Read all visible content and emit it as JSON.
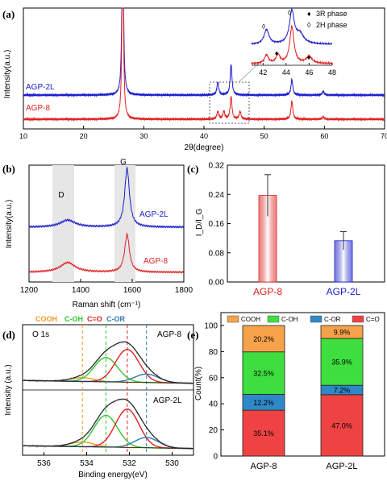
{
  "chart_data": [
    {
      "panel": "(a)",
      "type": "line",
      "xlabel": "2θ(degree)",
      "ylabel": "Intensity(a.u.)",
      "xlim": [
        10,
        70
      ],
      "x_ticks": [
        "10",
        "20",
        "30",
        "40",
        "50",
        "60",
        "70"
      ],
      "series": [
        {
          "name": "AGP-2L",
          "color": "#1a1acc",
          "peaks": [
            {
              "x": 26.5,
              "rel": 1.0
            },
            {
              "x": 42.3,
              "rel": 0.05
            },
            {
              "x": 44.5,
              "rel": 0.12
            },
            {
              "x": 54.6,
              "rel": 0.06
            },
            {
              "x": 59.8,
              "rel": 0.015
            }
          ]
        },
        {
          "name": "AGP-8",
          "color": "#e02020",
          "peaks": [
            {
              "x": 26.5,
              "rel": 1.0
            },
            {
              "x": 42.3,
              "rel": 0.03
            },
            {
              "x": 43.3,
              "rel": 0.03
            },
            {
              "x": 44.5,
              "rel": 0.09
            },
            {
              "x": 46.0,
              "rel": 0.03
            },
            {
              "x": 54.6,
              "rel": 0.07
            },
            {
              "x": 59.8,
              "rel": 0.01
            }
          ]
        }
      ],
      "inset": {
        "x_ticks": [
          "42",
          "44",
          "46",
          "48"
        ],
        "xlim": [
          41,
          48
        ],
        "legend": [
          {
            "symbol": "♦",
            "label": "3R phase"
          },
          {
            "symbol": "◊",
            "label": "2H phase"
          }
        ]
      }
    },
    {
      "panel": "(b)",
      "type": "line",
      "xlabel": "Raman shift (cm⁻¹)",
      "ylabel": "Intensity(a.u.)",
      "xlim": [
        1200,
        1800
      ],
      "x_ticks": [
        "1200",
        "1400",
        "1600",
        "1800"
      ],
      "band_labels": [
        "D",
        "G"
      ],
      "series": [
        {
          "name": "AGP-2L",
          "color": "#1a1acc",
          "D": {
            "x": 1350,
            "rel": 0.12
          },
          "G": {
            "x": 1580,
            "rel": 1.0
          }
        },
        {
          "name": "AGP-8",
          "color": "#e02020",
          "D": {
            "x": 1350,
            "rel": 0.18
          },
          "G": {
            "x": 1580,
            "rel": 0.7
          }
        }
      ]
    },
    {
      "panel": "(c)",
      "type": "bar",
      "ylabel": "I_D/I_G",
      "ylim": [
        0,
        0.32
      ],
      "y_ticks": [
        "0.00",
        "0.08",
        "0.16",
        "0.24",
        "0.32"
      ],
      "categories": [
        "AGP-8",
        "AGP-2L"
      ],
      "values": [
        0.237,
        0.113
      ],
      "errors": [
        0.057,
        0.025
      ],
      "colors": [
        "#e02020",
        "#1a1acc"
      ]
    },
    {
      "panel": "(d)",
      "type": "line",
      "title": "O 1s",
      "xlabel": "Binding energy(eV)",
      "ylabel": "Intensity (a.u.)",
      "xlim": [
        537,
        529
      ],
      "x_ticks": [
        "536",
        "534",
        "532",
        "530"
      ],
      "components": [
        {
          "label": "COOH",
          "color": "#f39a1e",
          "center": 534.2
        },
        {
          "label": "C-OH",
          "color": "#2ec82e",
          "center": 533.1
        },
        {
          "label": "C=O",
          "color": "#e02020",
          "center": 532.1
        },
        {
          "label": "C-OR",
          "color": "#2a79b5",
          "center": 531.2
        }
      ],
      "series": [
        {
          "name": "AGP-8",
          "amps": [
            0.08,
            0.52,
            0.7,
            0.18
          ]
        },
        {
          "name": "AGP-2L",
          "amps": [
            0.1,
            0.68,
            0.82,
            0.22
          ]
        }
      ]
    },
    {
      "panel": "(e)",
      "type": "bar",
      "stacked": true,
      "ylabel": "Count(%)",
      "ylim": [
        0,
        100
      ],
      "y_ticks": [
        "0",
        "20",
        "40",
        "60",
        "80",
        "100"
      ],
      "categories": [
        "AGP-8",
        "AGP-2L"
      ],
      "series": [
        {
          "name": "C=O",
          "color": "#ef4242",
          "values": [
            35.1,
            47.0
          ],
          "labels": [
            "35.1%",
            "47.0%"
          ]
        },
        {
          "name": "C-OR",
          "color": "#2f88c7",
          "values": [
            12.2,
            7.2
          ],
          "labels": [
            "12.2%",
            "7.2%"
          ]
        },
        {
          "name": "C-OH",
          "color": "#3fde3f",
          "values": [
            32.5,
            35.9
          ],
          "labels": [
            "32.5%",
            "35.9%"
          ]
        },
        {
          "name": "COOH",
          "color": "#f6a24a",
          "values": [
            20.2,
            9.9
          ],
          "labels": [
            "20.2%",
            "9.9%"
          ]
        }
      ],
      "legend_order": [
        "COOH",
        "C-OH",
        "C-OR",
        "C=O"
      ]
    }
  ]
}
